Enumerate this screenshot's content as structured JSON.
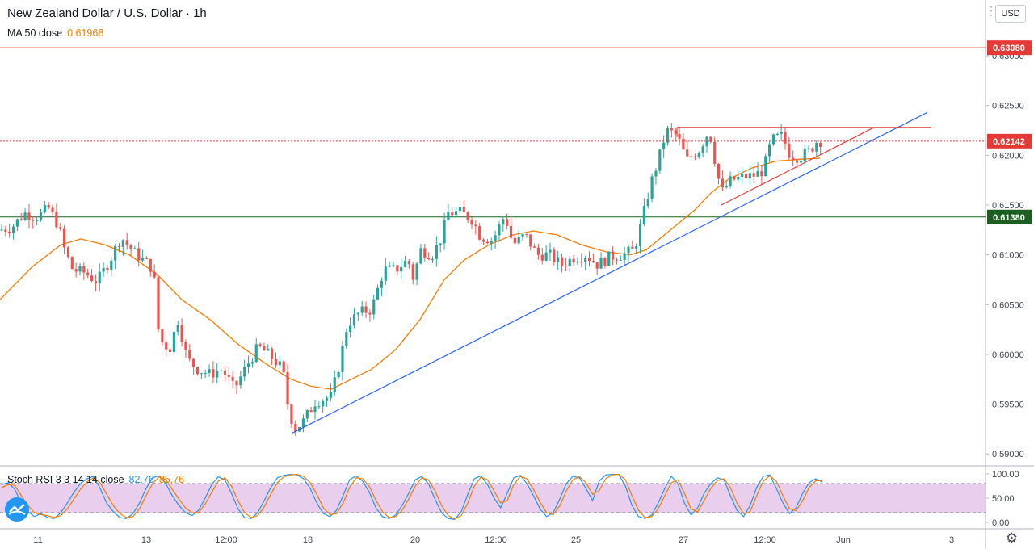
{
  "header": {
    "title": "New Zealand Dollar / U.S. Dollar",
    "separator": "·",
    "timeframe": "1h",
    "ma_label": "MA 50 close",
    "ma_value": "0.61968",
    "currency_button": "USD",
    "stoch_label": "Stoch RSI 3 3 14 14 close",
    "stoch_k": "82.76",
    "stoch_d": "85.76"
  },
  "colors": {
    "bull": "#26a69a",
    "bear": "#ef5350",
    "ma": "#f57c00",
    "trend": "#2962ff",
    "triangle": "#e53935",
    "resistance": "#e53935",
    "support": "#1b5e20",
    "stoch_band": "#e1bee7"
  },
  "icons": [
    "tradingview-logo-icon",
    "gear-icon",
    "more-options-icon"
  ],
  "chart_data": [
    {
      "type": "candlestick",
      "title": "New Zealand Dollar / U.S. Dollar",
      "interval": "1h",
      "y_ticks": [
        "0.63000",
        "0.62500",
        "0.62000",
        "0.61500",
        "0.61000",
        "0.60500",
        "0.60000",
        "0.59500",
        "0.59000"
      ],
      "y_range": [
        0.5888,
        0.6356
      ],
      "x_ticks": [
        "11",
        "13",
        "12:00",
        "18",
        "20",
        "12:00",
        "25",
        "27",
        "12:00",
        "Jun",
        "3"
      ],
      "x_range": [
        0,
        1220
      ],
      "price_labels": [
        {
          "value": "0.63080",
          "kind": "resistance"
        },
        {
          "value": "0.62142",
          "kind": "last-price"
        },
        {
          "value": "0.61380",
          "kind": "support"
        }
      ],
      "levels": [
        {
          "name": "resistance",
          "value": 0.6308
        },
        {
          "name": "last-price",
          "value": 0.62142
        },
        {
          "name": "support",
          "value": 0.6138
        }
      ],
      "trendline": {
        "from": [
          362,
          0.5921
        ],
        "to": [
          1148,
          0.6243
        ]
      },
      "triangle": {
        "top": {
          "from": [
            838,
            0.6228
          ],
          "to": [
            1153,
            0.6228
          ]
        },
        "bottom": {
          "from": [
            893,
            0.615
          ],
          "to": [
            1082,
            0.6228
          ]
        }
      },
      "ma50": [
        [
          0,
          0.6055
        ],
        [
          40,
          0.6088
        ],
        [
          75,
          0.611
        ],
        [
          100,
          0.6116
        ],
        [
          130,
          0.611
        ],
        [
          160,
          0.61
        ],
        [
          195,
          0.608
        ],
        [
          225,
          0.6055
        ],
        [
          260,
          0.6035
        ],
        [
          295,
          0.601
        ],
        [
          330,
          0.599
        ],
        [
          360,
          0.5975
        ],
        [
          385,
          0.5968
        ],
        [
          410,
          0.5965
        ],
        [
          435,
          0.5975
        ],
        [
          460,
          0.5985
        ],
        [
          490,
          0.6005
        ],
        [
          520,
          0.6035
        ],
        [
          550,
          0.6075
        ],
        [
          575,
          0.6095
        ],
        [
          605,
          0.611
        ],
        [
          635,
          0.612
        ],
        [
          660,
          0.6124
        ],
        [
          690,
          0.612
        ],
        [
          720,
          0.611
        ],
        [
          750,
          0.6103
        ],
        [
          780,
          0.61
        ],
        [
          800,
          0.6105
        ],
        [
          830,
          0.6125
        ],
        [
          860,
          0.6145
        ],
        [
          880,
          0.6162
        ],
        [
          900,
          0.6175
        ],
        [
          930,
          0.6187
        ],
        [
          960,
          0.6194
        ],
        [
          990,
          0.6196
        ],
        [
          1015,
          0.6197
        ]
      ],
      "price_path": [
        [
          0,
          0.6125
        ],
        [
          15,
          0.6128
        ],
        [
          30,
          0.6142
        ],
        [
          45,
          0.6138
        ],
        [
          60,
          0.6147
        ],
        [
          72,
          0.613
        ],
        [
          80,
          0.6105
        ],
        [
          90,
          0.6085
        ],
        [
          105,
          0.6082
        ],
        [
          120,
          0.6073
        ],
        [
          135,
          0.6093
        ],
        [
          150,
          0.6118
        ],
        [
          165,
          0.6103
        ],
        [
          180,
          0.6093
        ],
        [
          190,
          0.6085
        ],
        [
          197,
          0.6015
        ],
        [
          210,
          0.6005
        ],
        [
          220,
          0.6035
        ],
        [
          232,
          0.5995
        ],
        [
          245,
          0.5985
        ],
        [
          260,
          0.598
        ],
        [
          275,
          0.5985
        ],
        [
          290,
          0.5965
        ],
        [
          305,
          0.5988
        ],
        [
          320,
          0.6008
        ],
        [
          335,
          0.5998
        ],
        [
          350,
          0.5985
        ],
        [
          357,
          0.5945
        ],
        [
          365,
          0.5925
        ],
        [
          375,
          0.5932
        ],
        [
          390,
          0.5952
        ],
        [
          410,
          0.5958
        ],
        [
          420,
          0.599
        ],
        [
          430,
          0.603
        ],
        [
          445,
          0.6042
        ],
        [
          460,
          0.6045
        ],
        [
          475,
          0.6085
        ],
        [
          490,
          0.6085
        ],
        [
          505,
          0.6095
        ],
        [
          512,
          0.6075
        ],
        [
          520,
          0.6105
        ],
        [
          535,
          0.61
        ],
        [
          545,
          0.6115
        ],
        [
          555,
          0.6142
        ],
        [
          570,
          0.6143
        ],
        [
          585,
          0.6135
        ],
        [
          595,
          0.6118
        ],
        [
          610,
          0.6115
        ],
        [
          625,
          0.614
        ],
        [
          635,
          0.611
        ],
        [
          650,
          0.612
        ],
        [
          665,
          0.61
        ],
        [
          680,
          0.61
        ],
        [
          695,
          0.609
        ],
        [
          710,
          0.6097
        ],
        [
          725,
          0.61
        ],
        [
          740,
          0.609
        ],
        [
          755,
          0.6098
        ],
        [
          770,
          0.61
        ],
        [
          785,
          0.6105
        ],
        [
          795,
          0.6135
        ],
        [
          805,
          0.617
        ],
        [
          815,
          0.6195
        ],
        [
          825,
          0.6225
        ],
        [
          838,
          0.622
        ],
        [
          850,
          0.6195
        ],
        [
          865,
          0.6205
        ],
        [
          878,
          0.6225
        ],
        [
          885,
          0.6195
        ],
        [
          893,
          0.6162
        ],
        [
          905,
          0.6175
        ],
        [
          920,
          0.6178
        ],
        [
          935,
          0.618
        ],
        [
          945,
          0.6185
        ],
        [
          955,
          0.6215
        ],
        [
          968,
          0.622
        ],
        [
          978,
          0.62
        ],
        [
          990,
          0.6198
        ],
        [
          1003,
          0.6205
        ],
        [
          1012,
          0.6215
        ],
        [
          1018,
          0.6214
        ]
      ]
    },
    {
      "type": "line",
      "title": "Stoch RSI 3 3 14 14 close",
      "y_ticks": [
        "100.00",
        "50.00",
        "0.00"
      ],
      "y_range": [
        0,
        100
      ],
      "bands": [
        20,
        80
      ],
      "series": [
        {
          "name": "K",
          "values": [
            78,
            82,
            68,
            40,
            22,
            12,
            18,
            10,
            8,
            20,
            40,
            62,
            80,
            90,
            95,
            70,
            40,
            22,
            10,
            8,
            18,
            40,
            70,
            92,
            96,
            80,
            55,
            35,
            20,
            14,
            25,
            50,
            78,
            94,
            88,
            60,
            28,
            10,
            8,
            20,
            45,
            72,
            92,
            97,
            99,
            98,
            90,
            70,
            40,
            18,
            12,
            25,
            55,
            88,
            96,
            85,
            62,
            30,
            12,
            8,
            15,
            35,
            60,
            88,
            95,
            80,
            48,
            20,
            8,
            6,
            22,
            58,
            90,
            96,
            78,
            50,
            30,
            60,
            92,
            97,
            80,
            55,
            28,
            12,
            20,
            48,
            80,
            95,
            92,
            70,
            45,
            85,
            98,
            99,
            99,
            75,
            35,
            12,
            8,
            15,
            40,
            70,
            95,
            80,
            40,
            15,
            30,
            60,
            80,
            92,
            88,
            55,
            25,
            12,
            35,
            72,
            95,
            98,
            70,
            40,
            18,
            30,
            60,
            82,
            90,
            83
          ]
        },
        {
          "name": "D",
          "values": [
            72,
            78,
            76,
            55,
            35,
            20,
            16,
            14,
            10,
            14,
            28,
            48,
            68,
            84,
            92,
            82,
            58,
            35,
            18,
            10,
            12,
            28,
            55,
            80,
            94,
            88,
            68,
            48,
            30,
            20,
            20,
            38,
            62,
            85,
            92,
            75,
            45,
            20,
            10,
            14,
            32,
            58,
            82,
            94,
            98,
            99,
            95,
            82,
            58,
            30,
            16,
            18,
            40,
            72,
            92,
            90,
            74,
            46,
            22,
            10,
            12,
            25,
            48,
            75,
            92,
            88,
            65,
            35,
            14,
            7,
            14,
            40,
            75,
            93,
            88,
            65,
            40,
            45,
            78,
            95,
            90,
            68,
            42,
            20,
            16,
            34,
            65,
            88,
            94,
            82,
            58,
            65,
            90,
            98,
            99,
            88,
            55,
            25,
            10,
            12,
            28,
            55,
            82,
            88,
            60,
            28,
            22,
            45,
            70,
            86,
            90,
            72,
            40,
            18,
            22,
            55,
            85,
            96,
            85,
            55,
            28,
            24,
            45,
            72,
            86,
            86
          ]
        }
      ]
    }
  ]
}
